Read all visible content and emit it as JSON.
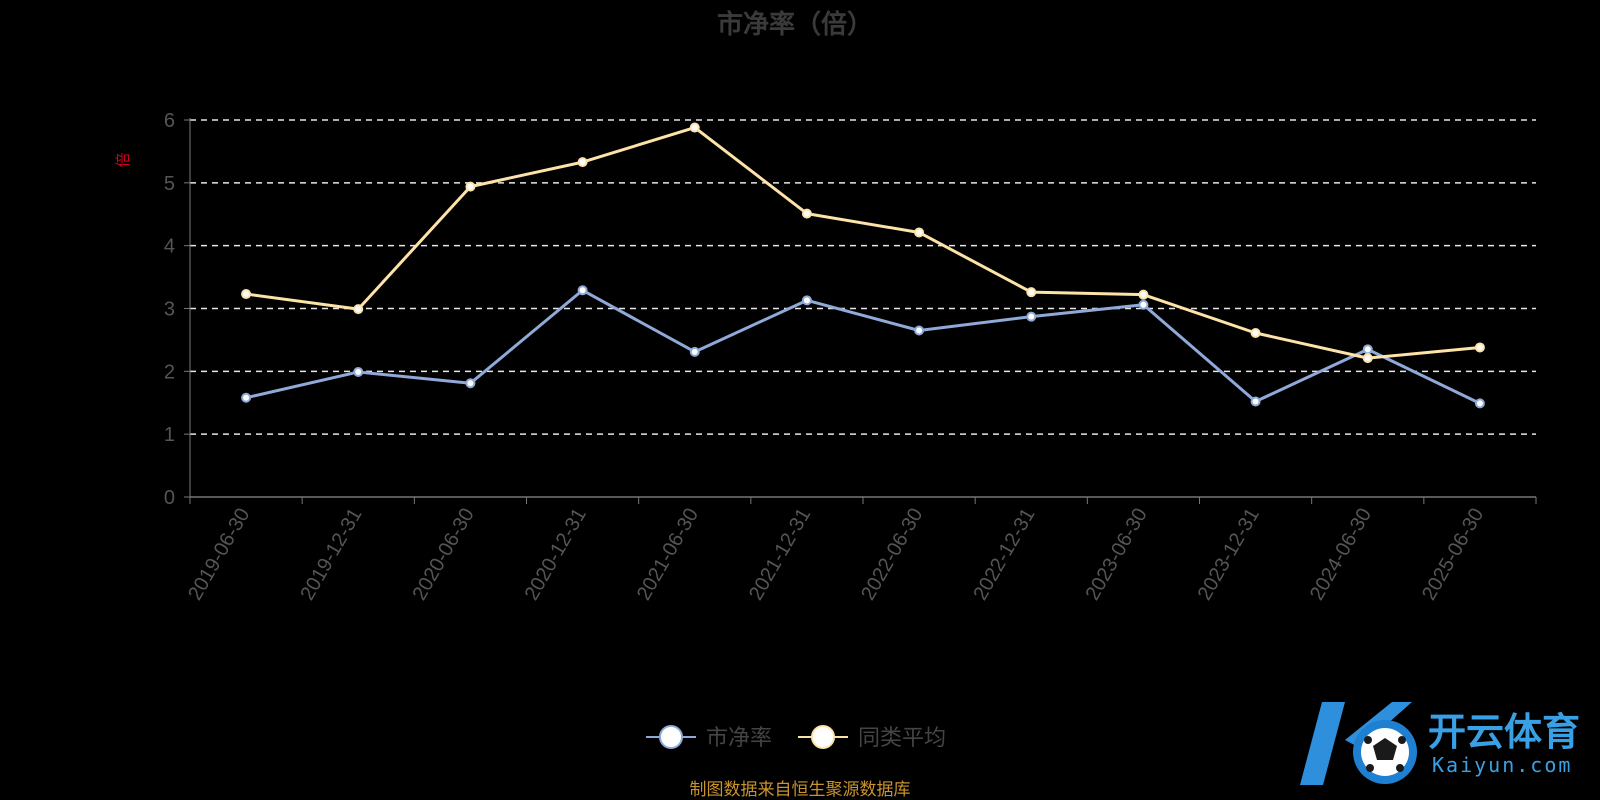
{
  "chart_data": {
    "type": "line",
    "title": "市净率（倍）",
    "ylabel": "倍",
    "xlabel": "",
    "ylim": [
      0,
      6
    ],
    "yticks": [
      "0",
      "1",
      "2",
      "3",
      "4",
      "5",
      "6"
    ],
    "grid": true,
    "legend_position": "bottom-center",
    "categories": [
      "2019-06-30",
      "2019-12-31",
      "2020-06-30",
      "2020-12-31",
      "2021-06-30",
      "2021-12-31",
      "2022-06-30",
      "2022-12-31",
      "2023-06-30",
      "2023-12-31",
      "2024-06-30",
      "2025-06-30"
    ],
    "series": [
      {
        "name": "市净率",
        "color": "#8fa9d8",
        "values": [
          1.58,
          1.99,
          1.81,
          3.29,
          2.31,
          3.13,
          2.65,
          2.87,
          3.06,
          1.52,
          2.35,
          1.49
        ]
      },
      {
        "name": "同类平均",
        "color": "#fde3a7",
        "values": [
          3.23,
          2.99,
          4.94,
          5.33,
          5.88,
          4.51,
          4.21,
          3.26,
          3.22,
          2.61,
          2.21,
          2.38
        ]
      }
    ]
  },
  "legend": {
    "item1": "市净率",
    "item2": "同类平均"
  },
  "source_text": "制图数据来自恒生聚源数据库",
  "logo": {
    "main": "开云体育",
    "sub": "Kaiyun.com"
  }
}
